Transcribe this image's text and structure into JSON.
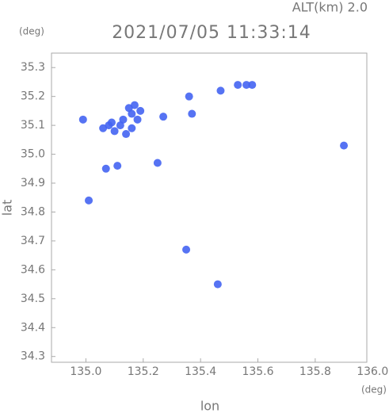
{
  "chart_data": {
    "type": "scatter",
    "altitude_label": "ALT(km) 2.0",
    "title": "2021/07/05 11:33:14",
    "y_unit": "(deg)",
    "x_unit": "(deg)",
    "xlabel": "lon",
    "ylabel": "lat",
    "xlim": [
      134.88,
      135.98
    ],
    "ylim": [
      34.28,
      35.35
    ],
    "xticks": [
      {
        "value": 135,
        "label": "135.0"
      },
      135.2,
      135.4,
      135.6,
      135.8,
      {
        "value": 136,
        "label": "136.0"
      }
    ],
    "yticks": [
      34.3,
      34.4,
      34.5,
      34.6,
      34.7,
      34.8,
      34.9,
      {
        "value": 35,
        "label": "35.0"
      },
      35.1,
      35.2,
      35.3
    ],
    "series": [
      {
        "color": "#4464f2",
        "x": [
          135.06,
          135.08,
          135.1,
          135.12,
          135.14,
          135.16,
          135.18,
          135.09,
          135.13,
          135.15,
          135.17,
          135.16,
          135.19,
          134.99,
          135.11,
          135.07,
          135.01,
          135.25,
          135.36,
          135.37,
          135.47,
          135.53,
          135.56,
          135.58,
          135.9,
          135.35,
          135.46,
          135.27
        ],
        "y": [
          35.09,
          35.1,
          35.08,
          35.1,
          35.07,
          35.09,
          35.12,
          35.11,
          35.12,
          35.16,
          35.17,
          35.14,
          35.15,
          35.12,
          34.96,
          34.95,
          34.84,
          34.97,
          35.2,
          35.14,
          35.22,
          35.24,
          35.24,
          35.24,
          35.03,
          34.67,
          34.55,
          35.13
        ]
      }
    ]
  }
}
